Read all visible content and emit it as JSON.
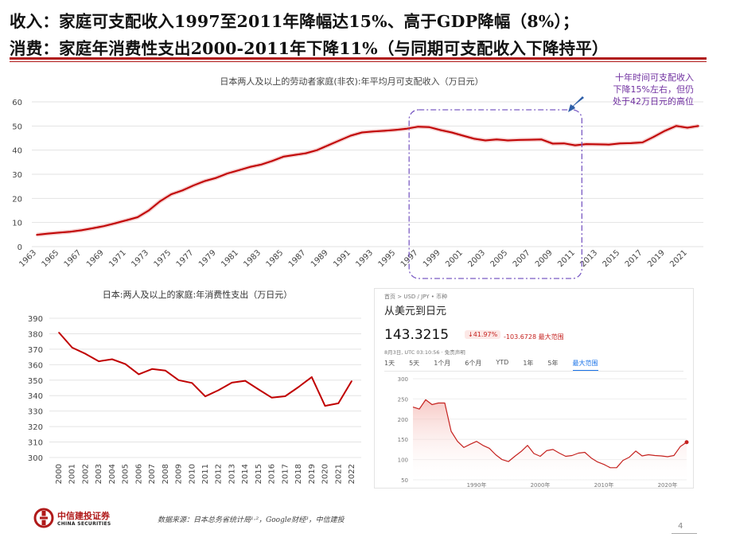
{
  "headline_1": "收入：家庭可支配收入1997至2011年降幅达15%、高于GDP降幅（8%）；",
  "headline_2": "消费：家庭年消费性支出2000-2011年下降11%（与同期可支配收入下降持平）",
  "annotation": [
    "十年时间可支配收入",
    "下降15%左右，但仍",
    "处于42万日元的高位"
  ],
  "colors": {
    "accent_red": "#b01a1a",
    "series_red": "#c00000",
    "annotation_purple": "#7030a0",
    "fx_red": "#c5221f",
    "fx_blue": "#1a73e8"
  },
  "chart_data": [
    {
      "type": "line",
      "title": "日本两人及以上的劳动者家庭(非农):年平均月可支配收入（万日元）",
      "x": [
        1963,
        1964,
        1965,
        1966,
        1967,
        1968,
        1969,
        1970,
        1971,
        1972,
        1973,
        1974,
        1975,
        1976,
        1977,
        1978,
        1979,
        1980,
        1981,
        1982,
        1983,
        1984,
        1985,
        1986,
        1987,
        1988,
        1989,
        1990,
        1991,
        1992,
        1993,
        1994,
        1995,
        1996,
        1997,
        1998,
        1999,
        2000,
        2001,
        2002,
        2003,
        2004,
        2005,
        2006,
        2007,
        2008,
        2009,
        2010,
        2011,
        2012,
        2013,
        2014,
        2015,
        2016,
        2017,
        2018,
        2019,
        2020,
        2021,
        2022
      ],
      "x_tick_labels": [
        "1963",
        "1965",
        "1967",
        "1969",
        "1971",
        "1973",
        "1975",
        "1977",
        "1979",
        "1981",
        "1983",
        "1985",
        "1987",
        "1989",
        "1991",
        "1993",
        "1995",
        "1997",
        "1999",
        "2001",
        "2003",
        "2005",
        "2007",
        "2009",
        "2011",
        "2013",
        "2015",
        "2017",
        "2019",
        "2021"
      ],
      "values": [
        4.9,
        5.4,
        5.8,
        6.2,
        6.8,
        7.6,
        8.5,
        9.7,
        10.9,
        12.2,
        15.0,
        18.8,
        21.7,
        23.3,
        25.4,
        27.2,
        28.5,
        30.3,
        31.6,
        33.0,
        34.0,
        35.5,
        37.3,
        38.0,
        38.7,
        40.0,
        42.0,
        44.0,
        46.0,
        47.3,
        47.7,
        48.0,
        48.4,
        48.9,
        49.7,
        49.5,
        48.3,
        47.3,
        46.0,
        44.7,
        44.0,
        44.4,
        44.0,
        44.2,
        44.3,
        44.4,
        42.7,
        42.8,
        42.0,
        42.5,
        42.4,
        42.3,
        42.8,
        42.9,
        43.2,
        45.5,
        48.0,
        50.0,
        49.3,
        50.0
      ],
      "ylim": [
        0,
        60
      ],
      "y_ticks": [
        0,
        10,
        20,
        30,
        40,
        50,
        60
      ],
      "grid": true
    },
    {
      "type": "line",
      "title": "日本:两人及以上的家庭:年消费性支出（万日元）",
      "x": [
        2000,
        2001,
        2002,
        2003,
        2004,
        2005,
        2006,
        2007,
        2008,
        2009,
        2010,
        2011,
        2012,
        2013,
        2014,
        2015,
        2016,
        2017,
        2018,
        2019,
        2020,
        2021,
        2022
      ],
      "x_tick_labels": [
        "2000",
        "2001",
        "2002",
        "2003",
        "2004",
        "2005",
        "2006",
        "2007",
        "2008",
        "2009",
        "2010",
        "2011",
        "2012",
        "2013",
        "2014",
        "2015",
        "2016",
        "2017",
        "2018",
        "2019",
        "2020",
        "2021",
        "2022"
      ],
      "values": [
        380.8,
        371.0,
        367.0,
        362.2,
        363.5,
        360.4,
        353.8,
        357.2,
        356.2,
        350.0,
        348.2,
        339.5,
        343.5,
        348.4,
        349.6,
        344.0,
        338.7,
        339.6,
        345.5,
        352.0,
        333.4,
        335.0,
        349.4
      ],
      "ylim": [
        300,
        390
      ],
      "y_ticks": [
        300,
        310,
        320,
        330,
        340,
        350,
        360,
        370,
        380,
        390
      ],
      "grid": true
    },
    {
      "type": "area",
      "title": "从美元到日元",
      "breadcrumb": "首页 > USD / JPY • 币种",
      "current_rate": "143.3215",
      "change_pct": "↓41.97%",
      "change_abs": "-103.6728",
      "range_label": "最大范围",
      "timestamp": "8月3日, UTC 03:10:56 · 免责声明",
      "tabs": [
        "1天",
        "5天",
        "1个月",
        "6个月",
        "YTD",
        "1年",
        "5年",
        "最大范围"
      ],
      "active_tab": "最大范围",
      "x": [
        1980,
        1981,
        1982,
        1983,
        1984,
        1985,
        1986,
        1987,
        1988,
        1989,
        1990,
        1991,
        1992,
        1993,
        1994,
        1995,
        1996,
        1997,
        1998,
        1999,
        2000,
        2001,
        2002,
        2003,
        2004,
        2005,
        2006,
        2007,
        2008,
        2009,
        2010,
        2011,
        2012,
        2013,
        2014,
        2015,
        2016,
        2017,
        2018,
        2019,
        2020,
        2021,
        2022,
        2023
      ],
      "values": [
        230,
        225,
        248,
        236,
        240,
        240,
        170,
        145,
        130,
        138,
        145,
        135,
        128,
        112,
        100,
        95,
        108,
        120,
        135,
        115,
        108,
        122,
        125,
        116,
        108,
        110,
        116,
        118,
        104,
        94,
        88,
        80,
        80,
        98,
        106,
        121,
        109,
        112,
        110,
        109,
        107,
        110,
        132,
        143
      ],
      "x_tick_labels": [
        "1990年",
        "2000年",
        "2010年",
        "2020年"
      ],
      "y_ticks": [
        50,
        100,
        150,
        200,
        250,
        300
      ],
      "ylim": [
        50,
        300
      ]
    }
  ],
  "footer": {
    "logo_cn": "中信建投证券",
    "logo_en": "CHINA SECURITIES",
    "source": "数据来源：日本总务省统计局¹·²，Google财经³，中信建投",
    "page_number": "4"
  }
}
